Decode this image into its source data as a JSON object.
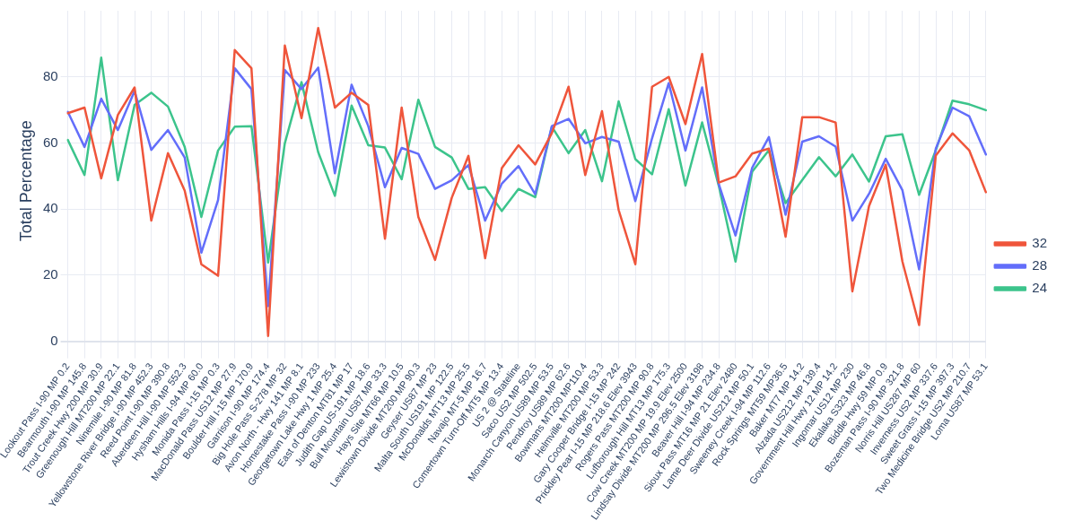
{
  "chart_data": {
    "type": "line",
    "ylabel": "Total Percentage",
    "categories": [
      "Lookout Pass I-90 MP 0.2",
      "Bearmouth I-90 MP 145.8",
      "Trout Creek Hwy 200 MP 30.9",
      "Greenough Hill MT200 MP 22.1",
      "Ninemile I-90 MP 81.8",
      "Yellowstone River Bridge I-90 MP 452.3",
      "Reed Point I-90 MP 390.8",
      "Aberdeen Hill I-90 MP 552.3",
      "Hysham Hills I-94 MP 60.0",
      "Monida Pass I-15 MP 0.3",
      "MacDonald Pass US12 MP 27.9",
      "Boulder Hill I-15 MP 170.9",
      "Garrison I-90 MP 174.4",
      "Big Hole Pass S-278 MP 32",
      "Avon North - Hwy 141 MP 8.1",
      "Homestake Pass I-90 MP 233",
      "Georgetown Lake Hwy 1 MP 25.4",
      "East of Denton MT81 MP 17",
      "Judith Gap US-191 MP 18.6",
      "Bull Mountain US87 MP 33.3",
      "Hays Site MT66 MP 10.5",
      "Lewistown Divide MT200 MP 90.3",
      "Geyser US87 MP 23",
      "Malta South US191 MP 122.5",
      "McDonalds MT13 MP 25.5",
      "Navajo MT-5 MP 16.7",
      "Comertown Turn-Off MT5 MP 13.4",
      "US 2 @ Stateline",
      "Saco US2 MP 502.5",
      "Monarch Canyon US89 MP 53.5",
      "Pendroy US89 MP 62.6",
      "Bowmans MT200 MP110.4",
      "Helmville MT200 MP 53.3",
      "Gary Cooper Bridge I-15 MP 242",
      "Prickley Pear I-15 MP 218.6 Elev 3943",
      "Rogers Pass MT200 MP 90.8",
      "Lufborough Hill MT13 MP 175.3",
      "Cow Creek MT200 MP 19.9 Elev 2500",
      "Lindsay Divide MT200 MP 296.5 Elev 3198",
      "Beaver Hill I-94 MP 234.8",
      "Sioux Pass MT16 MP 21 Elev 2480",
      "Lame Deer Divide US212 MP 50.1",
      "Sweeney Creek I-94 MP 112.6",
      "Rock Springs MT59 MP36.5",
      "Baker MT7 MP 14.2",
      "Alzada US212 MP 139.4",
      "Government Hill Hwy 12 MP 14.2",
      "Ingomar US12 MP 230",
      "Ekalaka S323 MP 46.8",
      "Biddle Hwy 59 MP 0.9",
      "Bozeman Pass I-90 MP 321.8",
      "Norris Hill US287 MP 60",
      "Inverness US2 MP 337.6",
      "Sweet Grass I-15 MP 397.3",
      "Two Medicine Bridge US2 MP 210.7",
      "Loma US87 MP 53.1"
    ],
    "series": [
      {
        "name": "32",
        "color": "#ef553b",
        "values": [
          69,
          70.7,
          49.3,
          68.5,
          76.8,
          36.5,
          56.9,
          45.6,
          23.3,
          19.8,
          88.1,
          82.6,
          1.6,
          89.5,
          67.5,
          94.8,
          70.7,
          75.2,
          71.5,
          31,
          70.7,
          37.6,
          24.6,
          43.4,
          56.1,
          25.1,
          52.4,
          59.3,
          53.5,
          63,
          77,
          50.3,
          69.6,
          39.7,
          23.3,
          77,
          80,
          65.7,
          86.9,
          48,
          49.9,
          56.8,
          58.3,
          31.6,
          67.8,
          67.8,
          66.2,
          15.1,
          40.9,
          53.4,
          24.1,
          4.9,
          56.2,
          62.9,
          57.8,
          45.1
        ]
      },
      {
        "name": "28",
        "color": "#636efa",
        "values": [
          69.4,
          58.8,
          73.4,
          63.9,
          75.7,
          57.9,
          63.9,
          55.6,
          26.8,
          42.7,
          82.6,
          76.3,
          10.6,
          82.1,
          76.3,
          82.8,
          50.8,
          77.6,
          65.1,
          46.6,
          58.5,
          56.7,
          46.1,
          48.7,
          53.3,
          36.5,
          47.7,
          53,
          44.5,
          65.1,
          67.3,
          59.9,
          61.8,
          60.4,
          42.4,
          61.4,
          78.1,
          57.7,
          76.8,
          47.5,
          32,
          52.5,
          61.8,
          38.3,
          60.4,
          62,
          58.9,
          36.5,
          44.6,
          55.2,
          45.7,
          21.7,
          58.3,
          70.7,
          68.1,
          56.5
        ]
      },
      {
        "name": "24",
        "color": "#3cc48c",
        "values": [
          60.9,
          50.3,
          85.8,
          48.7,
          71.5,
          75.2,
          71,
          58.8,
          37.6,
          57.7,
          64.9,
          65.1,
          23.8,
          59.9,
          78.4,
          57.2,
          44,
          71.3,
          59.3,
          58.6,
          49,
          73.1,
          58.8,
          55.6,
          46.1,
          46.6,
          39.4,
          46.1,
          43.6,
          64.9,
          56.9,
          63.9,
          48.4,
          72.6,
          55.1,
          50.5,
          70.2,
          47.1,
          66.2,
          47,
          24.1,
          51.3,
          57.8,
          41.8,
          48.8,
          55.7,
          49.9,
          56.5,
          48.3,
          62,
          62.6,
          44.3,
          57.8,
          72.8,
          71.7,
          69.9
        ]
      }
    ],
    "ylim": [
      -3,
      100
    ],
    "yticks": [
      0,
      20,
      40,
      60,
      80
    ],
    "grid": true,
    "legend": "right",
    "marker": "none",
    "line_style": "solid"
  }
}
